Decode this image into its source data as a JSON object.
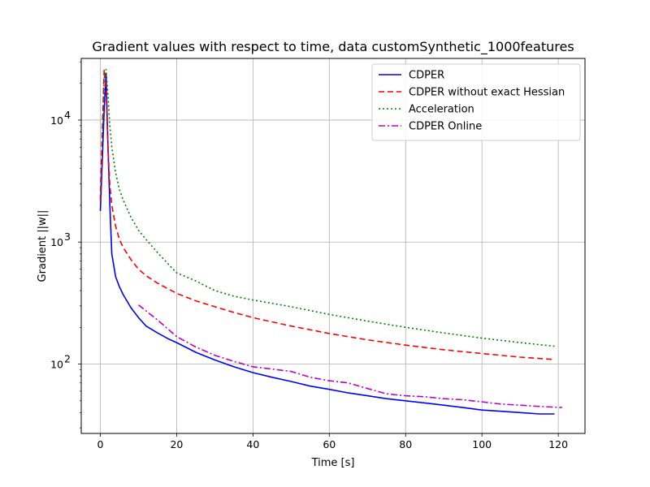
{
  "chart_data": {
    "type": "line",
    "title": "Gradient values with respect to time, data customSynthetic_1000features",
    "xlabel": "Time [s]",
    "ylabel": "Gradient ||w||",
    "xlim": [
      -5,
      127
    ],
    "ylim": [
      27,
      32000
    ],
    "yscale": "log",
    "grid": true,
    "legend_position": "top-right",
    "x_ticks": [
      0,
      20,
      40,
      60,
      80,
      100,
      120
    ],
    "x_tick_labels": [
      "0",
      "20",
      "40",
      "60",
      "80",
      "100",
      "120"
    ],
    "y_ticks": [
      100,
      1000,
      10000
    ],
    "y_tick_labels": [
      "10",
      "10",
      "10"
    ],
    "y_tick_exponents": [
      "2",
      "3",
      "4"
    ],
    "series": [
      {
        "name": "CDPER",
        "color": "#0000ff",
        "dash": "",
        "x": [
          0,
          0.5,
          1.0,
          1.5,
          2.0,
          2.5,
          3,
          4,
          5,
          6,
          8,
          10,
          12,
          15,
          18,
          20,
          25,
          30,
          35,
          40,
          45,
          50,
          55,
          60,
          65,
          70,
          75,
          80,
          85,
          90,
          95,
          100,
          105,
          110,
          115,
          119
        ],
        "y": [
          1800,
          4500,
          12000,
          24000,
          6000,
          2000,
          800,
          520,
          430,
          370,
          290,
          240,
          205,
          180,
          160,
          150,
          125,
          108,
          95,
          85,
          78,
          72,
          66,
          62,
          58,
          55,
          52,
          50,
          48,
          46,
          44,
          42,
          41,
          40,
          39,
          39
        ]
      },
      {
        "name": "CDPER without exact Hessian",
        "color": "#ff0000",
        "dash": "7,4",
        "x": [
          0,
          0.5,
          1.0,
          1.5,
          2.0,
          2.5,
          3,
          4,
          5,
          6,
          8,
          10,
          12,
          15,
          18,
          20,
          25,
          30,
          35,
          40,
          50,
          60,
          70,
          80,
          90,
          100,
          110,
          119
        ],
        "y": [
          2200,
          8000,
          26000,
          18000,
          6000,
          2900,
          2000,
          1350,
          1050,
          900,
          720,
          600,
          530,
          460,
          410,
          380,
          330,
          295,
          265,
          240,
          205,
          178,
          158,
          143,
          131,
          122,
          114,
          109
        ]
      },
      {
        "name": "Acceleration",
        "color": "#008000",
        "dash": "2,3",
        "x": [
          0.5,
          1.0,
          1.5,
          2.0,
          2.5,
          3,
          4,
          5,
          6,
          8,
          10,
          12,
          15,
          18,
          20,
          25,
          30,
          35,
          40,
          50,
          60,
          70,
          80,
          90,
          100,
          110,
          119
        ],
        "y": [
          6000,
          22000,
          26000,
          16000,
          9000,
          6000,
          3700,
          2700,
          2200,
          1600,
          1250,
          1050,
          820,
          650,
          560,
          480,
          400,
          360,
          335,
          295,
          255,
          225,
          200,
          180,
          163,
          150,
          140
        ]
      },
      {
        "name": "CDPER Online",
        "color": "#bf00bf",
        "dash": "8,3,2,3",
        "x": [
          10,
          15,
          20,
          25,
          30,
          35,
          40,
          45,
          50,
          55,
          60,
          65,
          70,
          75,
          80,
          85,
          90,
          95,
          100,
          105,
          110,
          115,
          121
        ],
        "y": [
          305,
          230,
          168,
          138,
          118,
          105,
          95,
          91,
          87,
          78,
          73,
          70,
          63,
          57,
          55,
          54,
          52,
          51,
          49,
          47,
          46,
          45,
          44
        ]
      }
    ]
  }
}
